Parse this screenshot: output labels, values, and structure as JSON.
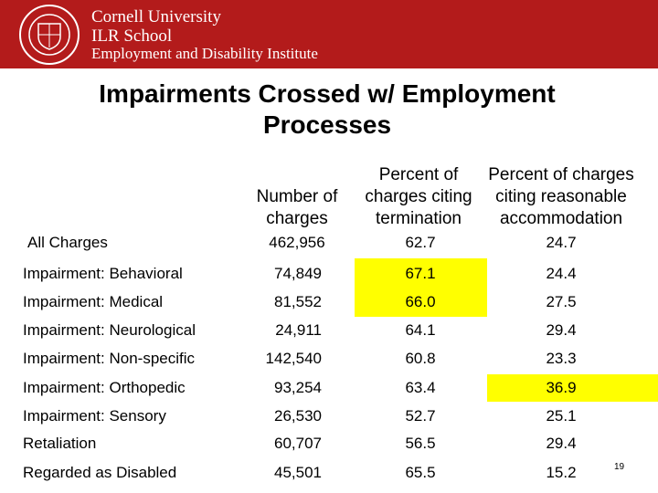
{
  "header": {
    "institution": [
      "Cornell University",
      "ILR School",
      "Employment and Disability Institute"
    ]
  },
  "title": "Impairments Crossed w/ Employment Processes",
  "table": {
    "columns": [
      "Number of charges",
      "Percent of charges citing termination",
      "Percent of charges citing reasonable accommodation"
    ],
    "rows": [
      [
        "All Charges",
        "462,956",
        "62.7",
        "24.7"
      ],
      [
        "Impairment: Behavioral",
        "74,849",
        "67.1",
        "24.4"
      ],
      [
        "Impairment: Medical",
        "81,552",
        "66.0",
        "27.5"
      ],
      [
        "Impairment: Neurological",
        "24,911",
        "64.1",
        "29.4"
      ],
      [
        "Impairment: Non-specific",
        "142,540",
        "60.8",
        "23.3"
      ],
      [
        "Impairment: Orthopedic",
        "93,254",
        "63.4",
        "36.9"
      ],
      [
        "Impairment: Sensory",
        "26,530",
        "52.7",
        "25.1"
      ],
      [
        "Retaliation",
        "60,707",
        "56.5",
        "29.4"
      ],
      [
        "Regarded as Disabled",
        "45,501",
        "65.5",
        "15.2"
      ]
    ]
  },
  "page_number": "19"
}
